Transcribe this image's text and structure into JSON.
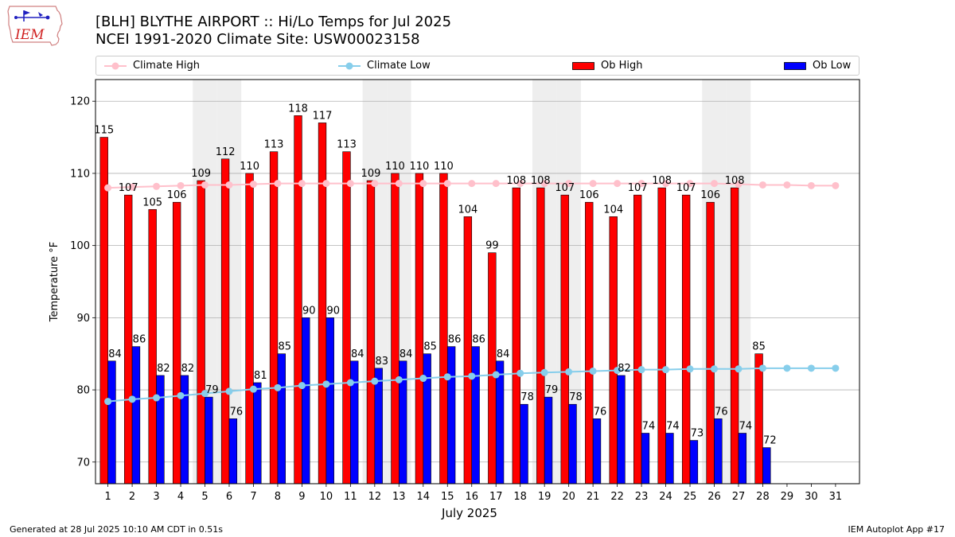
{
  "logo": {
    "text": "IEM"
  },
  "header": {
    "title_line1": "[BLH] BLYTHE AIRPORT :: Hi/Lo Temps for Jul 2025",
    "title_line2": "NCEI 1991-2020 Climate Site: USW00023158"
  },
  "legend": {
    "climate_high": "Climate High",
    "climate_low": "Climate Low",
    "ob_high": "Ob High",
    "ob_low": "Ob Low"
  },
  "footer": {
    "generated": "Generated at 28 Jul 2025 10:10 AM CDT in 0.51s",
    "app": "IEM Autoplot App #17"
  },
  "colors": {
    "ob_high": "#ff0000",
    "ob_low": "#0000ff",
    "climate_high": "#ffc0cb",
    "climate_low": "#87ceeb",
    "weekend_band": "#eeeeee",
    "grid": "#b0b0b0"
  },
  "chart_data": {
    "type": "bar",
    "xlabel": "July 2025",
    "ylabel": "Temperature °F",
    "ylim": [
      67,
      123
    ],
    "yticks": [
      70,
      80,
      90,
      100,
      110,
      120
    ],
    "grid": "horizontal",
    "legend_position": "top",
    "categories": [
      "1",
      "2",
      "3",
      "4",
      "5",
      "6",
      "7",
      "8",
      "9",
      "10",
      "11",
      "12",
      "13",
      "14",
      "15",
      "16",
      "17",
      "18",
      "19",
      "20",
      "21",
      "22",
      "23",
      "24",
      "25",
      "26",
      "27",
      "28",
      "29",
      "30",
      "31"
    ],
    "shaded_days": [
      5,
      6,
      12,
      13,
      19,
      20,
      26,
      27
    ],
    "series": [
      {
        "name": "Ob High",
        "kind": "bar",
        "values": [
          115,
          107,
          105,
          106,
          109,
          112,
          110,
          113,
          118,
          117,
          113,
          109,
          110,
          110,
          110,
          104,
          99,
          108,
          108,
          107,
          106,
          104,
          107,
          108,
          107,
          106,
          108,
          85,
          null,
          null,
          null
        ]
      },
      {
        "name": "Ob Low",
        "kind": "bar",
        "values": [
          84,
          86,
          82,
          82,
          79,
          76,
          81,
          85,
          90,
          90,
          84,
          83,
          84,
          85,
          86,
          86,
          84,
          78,
          79,
          78,
          76,
          82,
          74,
          74,
          73,
          76,
          74,
          72,
          null,
          null,
          null
        ]
      },
      {
        "name": "Climate High",
        "kind": "line",
        "values": [
          108.0,
          108.1,
          108.2,
          108.3,
          108.4,
          108.4,
          108.5,
          108.6,
          108.6,
          108.6,
          108.6,
          108.6,
          108.6,
          108.6,
          108.6,
          108.6,
          108.6,
          108.6,
          108.6,
          108.6,
          108.6,
          108.6,
          108.6,
          108.6,
          108.6,
          108.6,
          108.5,
          108.4,
          108.4,
          108.3,
          108.3
        ]
      },
      {
        "name": "Climate Low",
        "kind": "line",
        "values": [
          78.4,
          78.7,
          78.9,
          79.2,
          79.5,
          79.8,
          80.1,
          80.3,
          80.6,
          80.8,
          81.0,
          81.2,
          81.4,
          81.6,
          81.8,
          81.9,
          82.1,
          82.3,
          82.4,
          82.5,
          82.6,
          82.7,
          82.8,
          82.8,
          82.9,
          82.9,
          82.9,
          83.0,
          83.0,
          83.0,
          83.0
        ]
      }
    ]
  }
}
